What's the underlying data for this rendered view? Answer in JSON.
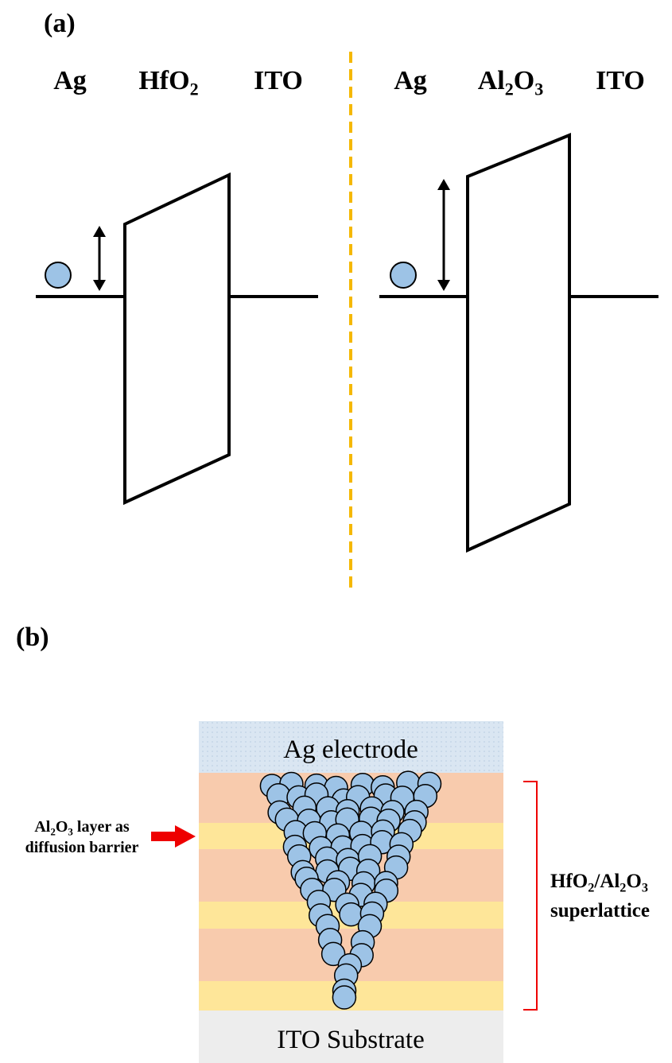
{
  "panel_a": {
    "label": "(a)",
    "left": {
      "metal": "Ag",
      "oxide": [
        "HfO",
        "2"
      ],
      "electrode": "ITO"
    },
    "right": {
      "metal": "Ag",
      "oxide": [
        "Al",
        "2",
        "O",
        "3"
      ],
      "electrode": "ITO"
    }
  },
  "panel_b": {
    "label": "(b)",
    "top_layer": "Ag electrode",
    "substrate": "ITO Substrate",
    "barrier_note": [
      [
        "Al",
        "2",
        "O",
        "3",
        " layer as"
      ],
      "diffusion barrier"
    ],
    "superlattice_note": [
      [
        "HfO",
        "2",
        "/Al",
        "2",
        "O",
        "3"
      ],
      "superlattice"
    ]
  }
}
